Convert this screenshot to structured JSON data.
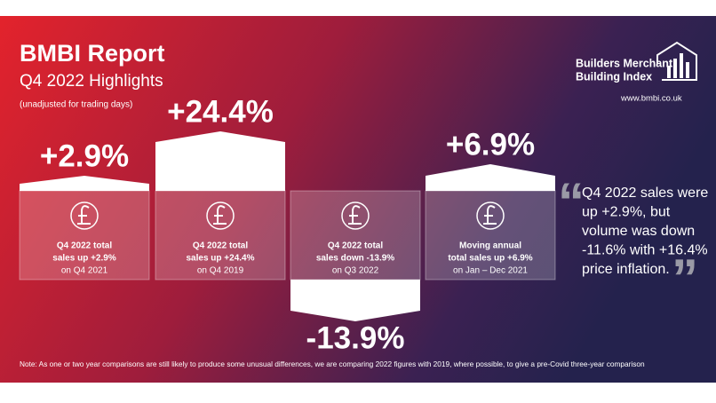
{
  "header": {
    "title": "BMBI Report",
    "subtitle": "Q4 2022 Highlights",
    "note": "(unadjusted for trading days)"
  },
  "logo": {
    "line1": "Builders Merchant",
    "line2": "Building Index",
    "url": "www.bmbi.co.uk"
  },
  "cards": [
    {
      "value": "+2.9%",
      "line1": "Q4 2022 total",
      "line2": "sales up +2.9%",
      "line3": "on Q4 2021"
    },
    {
      "value": "+24.4%",
      "line1": "Q4 2022 total",
      "line2": "sales up +24.4%",
      "line3": "on Q4 2019"
    },
    {
      "value": "-13.9%",
      "line1": "Q4 2022 total",
      "line2": "sales down -13.9%",
      "line3": "on Q3 2022"
    },
    {
      "value": "+6.9%",
      "line1": "Moving annual",
      "line2": "total sales up +6.9%",
      "line3": "on Jan – Dec 2021"
    }
  ],
  "quote": [
    "Q4 2022 sales were",
    "up +2.9%, but",
    "volume was down",
    "-11.6% with +16.4%",
    "price inflation."
  ],
  "footnote": "Note: As one or two year comparisons are still likely to produce some unusual differences, we are comparing 2022 figures with 2019, where possible, to give a pre-Covid three-year comparison"
}
